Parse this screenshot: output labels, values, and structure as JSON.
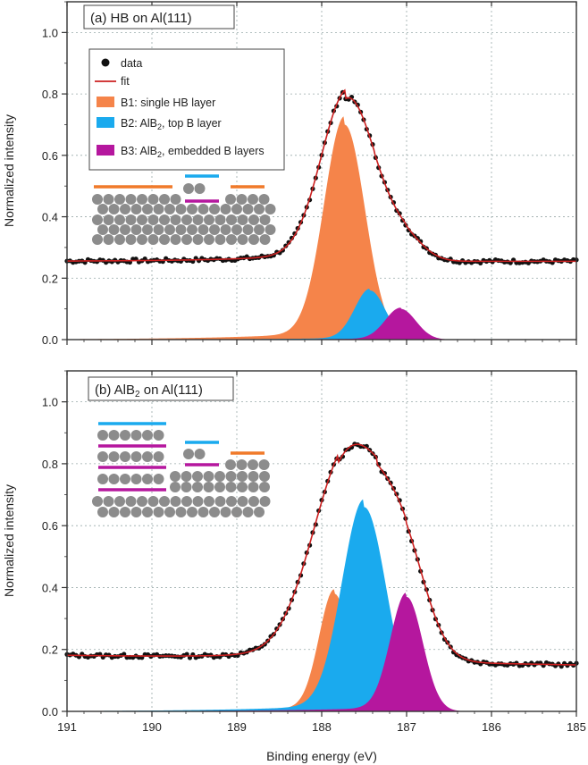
{
  "chart_data": [
    {
      "type": "area",
      "title": "(a)  HB on Al(111)",
      "xlabel": "Binding energy (eV)",
      "ylabel": "Normalized intensity",
      "xlim": [
        191,
        185
      ],
      "ylim": [
        0,
        1.1
      ],
      "x_ticks": [
        "191",
        "190",
        "189",
        "188",
        "187",
        "186",
        "185"
      ],
      "y_ticks": [
        "0.0",
        "0.2",
        "0.4",
        "0.6",
        "0.8",
        "1.0"
      ],
      "grid": true,
      "legend_position": "top-left",
      "legend": [
        {
          "key": "data",
          "label": "data",
          "kind": "marker",
          "color": "#111111"
        },
        {
          "key": "fit",
          "label": "fit",
          "kind": "line",
          "color": "#cc2020"
        },
        {
          "key": "B1",
          "label": "B1: single HB layer",
          "label_pre": "",
          "label_sub": "",
          "label_post": "",
          "kind": "fill",
          "color": "#f5844a"
        },
        {
          "key": "B2",
          "label": "B2: AlB2, top B layer",
          "label_pre": "B2: AlB",
          "label_sub": "2",
          "label_post": ", top B layer",
          "kind": "fill",
          "color": "#1aaaee"
        },
        {
          "key": "B3",
          "label": "B3: AlB2, embedded B layers",
          "label_pre": "B3: AlB",
          "label_sub": "2",
          "label_post": ", embedded B layers",
          "kind": "fill",
          "color": "#b5179e"
        }
      ],
      "baseline": 0.255,
      "fit_peaks": [
        {
          "center": 187.72,
          "height": 0.49,
          "width": 0.3
        },
        {
          "center": 187.38,
          "height": 0.08,
          "width": 0.26
        },
        {
          "center": 187.0,
          "height": 0.06,
          "width": 0.22
        }
      ],
      "components": [
        {
          "name": "B1",
          "color": "#f5844a",
          "center": 187.73,
          "height": 0.7,
          "width": 0.24,
          "tail": 0.0,
          "tail_decay": 1.0
        },
        {
          "name": "B2",
          "color": "#1aaaee",
          "center": 187.43,
          "height": 0.16,
          "width": 0.18,
          "tail": 0.0,
          "tail_decay": 1.0
        },
        {
          "name": "B3",
          "color": "#b5179e",
          "center": 187.07,
          "height": 0.1,
          "width": 0.18,
          "tail": 0.0,
          "tail_decay": 1.0
        }
      ],
      "schematic": "HB on Al(111)"
    },
    {
      "type": "area",
      "title": "(b)  AlB2 on Al(111)",
      "title_pre": "(b)  AlB",
      "title_sub": "2",
      "title_post": " on Al(111)",
      "xlabel": "Binding energy (eV)",
      "ylabel": "Normalized intensity",
      "xlim": [
        191,
        185
      ],
      "ylim": [
        0,
        1.1
      ],
      "x_ticks": [
        "191",
        "190",
        "189",
        "188",
        "187",
        "186",
        "185"
      ],
      "y_ticks": [
        "0.0",
        "0.2",
        "0.4",
        "0.6",
        "0.8",
        "1.0"
      ],
      "grid": true,
      "baseline_left": 0.18,
      "baseline_right": 0.15,
      "fit_peaks": [
        {
          "center": 187.8,
          "height": 0.46,
          "width": 0.38
        },
        {
          "center": 187.35,
          "height": 0.33,
          "width": 0.38
        },
        {
          "center": 187.0,
          "height": 0.18,
          "width": 0.26
        }
      ],
      "components": [
        {
          "name": "B1",
          "color": "#f5844a",
          "center": 187.85,
          "height": 0.38,
          "width": 0.18,
          "tail": 0.0,
          "tail_decay": 1.0
        },
        {
          "name": "B2",
          "color": "#1aaaee",
          "center": 187.5,
          "height": 0.66,
          "width": 0.26,
          "tail": 0.0,
          "tail_decay": 1.0
        },
        {
          "name": "B3",
          "color": "#b5179e",
          "center": 187.0,
          "height": 0.37,
          "width": 0.19,
          "tail": 0.0,
          "tail_decay": 1.0
        }
      ],
      "schematic": "AlB2 on Al(111)"
    }
  ]
}
